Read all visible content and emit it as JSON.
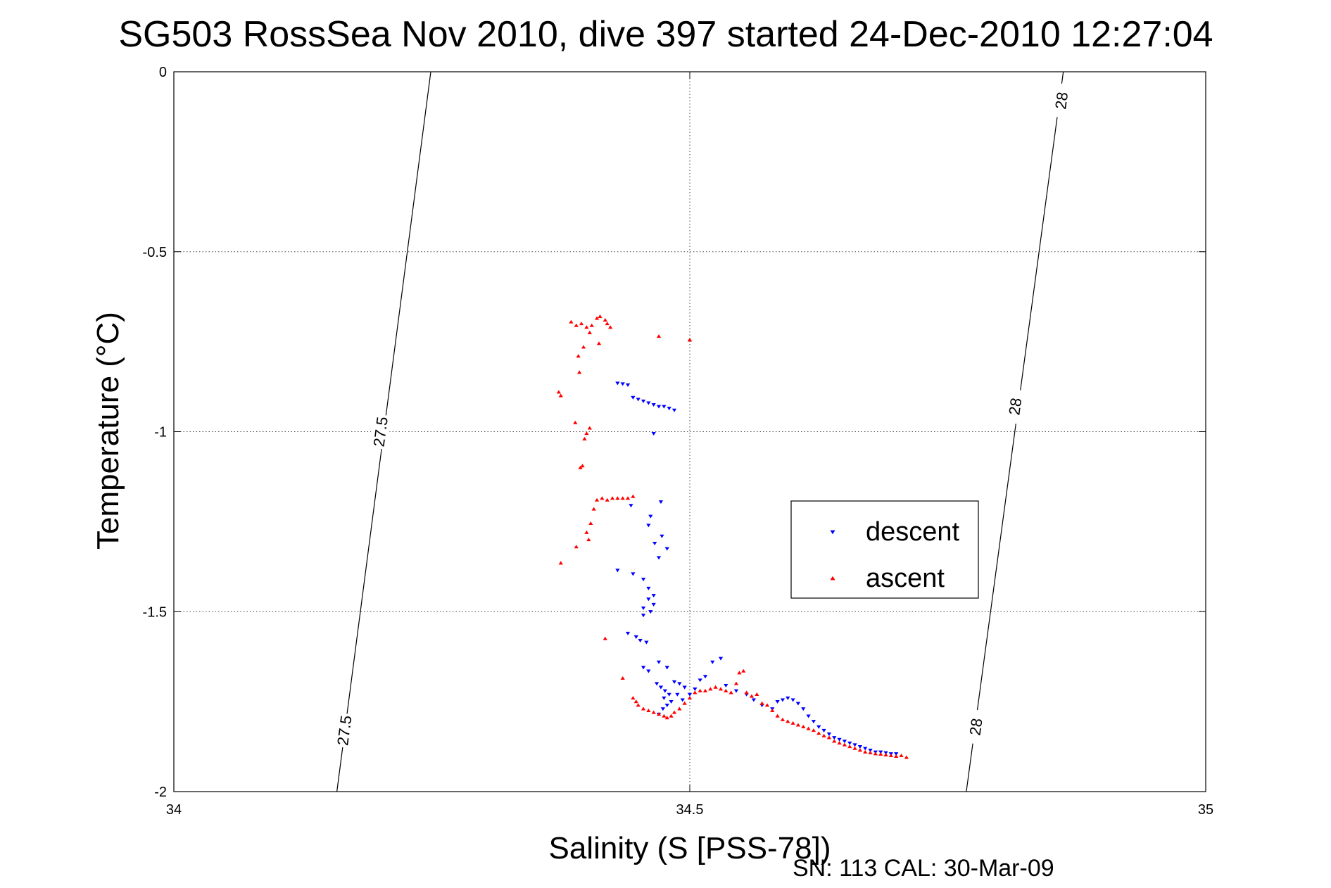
{
  "chart_data": {
    "type": "scatter",
    "title": "SG503 RossSea Nov 2010, dive 397 started 24-Dec-2010 12:27:04",
    "xlabel": "Salinity (S [PSS-78])",
    "ylabel": "Temperature (°C)",
    "xlim": [
      34,
      35
    ],
    "ylim": [
      -2,
      0
    ],
    "xticks": [
      "34",
      "34.5",
      "35"
    ],
    "yticks": [
      "0",
      "-0.5",
      "-1",
      "-1.5",
      "-2"
    ],
    "xtick_values": [
      34,
      34.5,
      35
    ],
    "ytick_values": [
      0,
      -0.5,
      -1,
      -1.5,
      -2
    ],
    "grid": true,
    "legend_position": "center-right",
    "footer": "SN: 113  CAL: 30-Mar-09",
    "contours": [
      {
        "label": "27.5",
        "points": [
          [
            34.158,
            -2.0
          ],
          [
            34.249,
            0.0
          ]
        ],
        "label_positions": [
          [
            34.2,
            -1.0
          ],
          [
            34.165,
            -1.83
          ]
        ]
      },
      {
        "label": "28",
        "points": [
          [
            34.768,
            -2.0
          ],
          [
            34.862,
            0.0
          ]
        ],
        "label_positions": [
          [
            34.86,
            -0.08
          ],
          [
            34.815,
            -0.93
          ],
          [
            34.777,
            -1.82
          ]
        ]
      }
    ],
    "series": [
      {
        "name": "descent",
        "marker": "triangle-down",
        "color": "#0000ff",
        "points": [
          [
            34.43,
            -0.865
          ],
          [
            34.435,
            -0.867
          ],
          [
            34.44,
            -0.87
          ],
          [
            34.445,
            -0.905
          ],
          [
            34.45,
            -0.91
          ],
          [
            34.455,
            -0.915
          ],
          [
            34.46,
            -0.92
          ],
          [
            34.465,
            -0.925
          ],
          [
            34.47,
            -0.93
          ],
          [
            34.475,
            -0.93
          ],
          [
            34.48,
            -0.935
          ],
          [
            34.485,
            -0.94
          ],
          [
            34.465,
            -1.005
          ],
          [
            34.472,
            -1.195
          ],
          [
            34.443,
            -1.205
          ],
          [
            34.462,
            -1.235
          ],
          [
            34.46,
            -1.26
          ],
          [
            34.473,
            -1.29
          ],
          [
            34.466,
            -1.31
          ],
          [
            34.478,
            -1.325
          ],
          [
            34.47,
            -1.35
          ],
          [
            34.43,
            -1.385
          ],
          [
            34.445,
            -1.395
          ],
          [
            34.455,
            -1.41
          ],
          [
            34.46,
            -1.435
          ],
          [
            34.465,
            -1.455
          ],
          [
            34.46,
            -1.465
          ],
          [
            34.465,
            -1.48
          ],
          [
            34.455,
            -1.49
          ],
          [
            34.462,
            -1.5
          ],
          [
            34.455,
            -1.51
          ],
          [
            34.44,
            -1.56
          ],
          [
            34.448,
            -1.57
          ],
          [
            34.452,
            -1.58
          ],
          [
            34.458,
            -1.585
          ],
          [
            34.47,
            -1.64
          ],
          [
            34.478,
            -1.655
          ],
          [
            34.455,
            -1.655
          ],
          [
            34.46,
            -1.665
          ],
          [
            34.468,
            -1.7
          ],
          [
            34.472,
            -1.71
          ],
          [
            34.476,
            -1.72
          ],
          [
            34.48,
            -1.73
          ],
          [
            34.475,
            -1.74
          ],
          [
            34.482,
            -1.75
          ],
          [
            34.478,
            -1.76
          ],
          [
            34.474,
            -1.77
          ],
          [
            34.47,
            -1.785
          ],
          [
            34.485,
            -1.695
          ],
          [
            34.49,
            -1.7
          ],
          [
            34.495,
            -1.71
          ],
          [
            34.488,
            -1.73
          ],
          [
            34.493,
            -1.745
          ],
          [
            34.5,
            -1.73
          ],
          [
            34.505,
            -1.715
          ],
          [
            34.51,
            -1.69
          ],
          [
            34.515,
            -1.68
          ],
          [
            34.522,
            -1.64
          ],
          [
            34.53,
            -1.63
          ],
          [
            34.535,
            -1.705
          ],
          [
            34.545,
            -1.72
          ],
          [
            34.555,
            -1.73
          ],
          [
            34.562,
            -1.745
          ],
          [
            34.57,
            -1.76
          ],
          [
            34.58,
            -1.77
          ],
          [
            34.585,
            -1.75
          ],
          [
            34.59,
            -1.745
          ],
          [
            34.595,
            -1.74
          ],
          [
            34.6,
            -1.745
          ],
          [
            34.605,
            -1.755
          ],
          [
            34.61,
            -1.77
          ],
          [
            34.615,
            -1.79
          ],
          [
            34.62,
            -1.805
          ],
          [
            34.625,
            -1.82
          ],
          [
            34.63,
            -1.83
          ],
          [
            34.635,
            -1.84
          ],
          [
            34.64,
            -1.85
          ],
          [
            34.645,
            -1.855
          ],
          [
            34.65,
            -1.86
          ],
          [
            34.655,
            -1.865
          ],
          [
            34.66,
            -1.87
          ],
          [
            34.665,
            -1.875
          ],
          [
            34.67,
            -1.88
          ],
          [
            34.675,
            -1.885
          ],
          [
            34.68,
            -1.89
          ],
          [
            34.685,
            -1.89
          ],
          [
            34.69,
            -1.892
          ],
          [
            34.695,
            -1.895
          ],
          [
            34.7,
            -1.895
          ]
        ]
      },
      {
        "name": "ascent",
        "marker": "triangle-up",
        "color": "#ff0000",
        "points": [
          [
            34.385,
            -0.695
          ],
          [
            34.39,
            -0.705
          ],
          [
            34.395,
            -0.7
          ],
          [
            34.4,
            -0.71
          ],
          [
            34.405,
            -0.705
          ],
          [
            34.41,
            -0.685
          ],
          [
            34.413,
            -0.68
          ],
          [
            34.418,
            -0.69
          ],
          [
            34.42,
            -0.7
          ],
          [
            34.423,
            -0.71
          ],
          [
            34.403,
            -0.725
          ],
          [
            34.412,
            -0.755
          ],
          [
            34.397,
            -0.765
          ],
          [
            34.392,
            -0.79
          ],
          [
            34.47,
            -0.735
          ],
          [
            34.5,
            -0.745
          ],
          [
            34.5,
            -0.745
          ],
          [
            34.393,
            -0.835
          ],
          [
            34.373,
            -0.89
          ],
          [
            34.375,
            -0.9
          ],
          [
            34.389,
            -0.975
          ],
          [
            34.403,
            -0.99
          ],
          [
            34.4,
            -1.005
          ],
          [
            34.398,
            -1.02
          ],
          [
            34.396,
            -1.095
          ],
          [
            34.394,
            -1.1
          ],
          [
            34.41,
            -1.19
          ],
          [
            34.415,
            -1.185
          ],
          [
            34.42,
            -1.19
          ],
          [
            34.425,
            -1.185
          ],
          [
            34.43,
            -1.185
          ],
          [
            34.435,
            -1.185
          ],
          [
            34.44,
            -1.185
          ],
          [
            34.445,
            -1.18
          ],
          [
            34.407,
            -1.215
          ],
          [
            34.404,
            -1.255
          ],
          [
            34.4,
            -1.28
          ],
          [
            34.39,
            -1.32
          ],
          [
            34.402,
            -1.3
          ],
          [
            34.375,
            -1.365
          ],
          [
            34.418,
            -1.575
          ],
          [
            34.435,
            -1.685
          ],
          [
            34.445,
            -1.74
          ],
          [
            34.448,
            -1.75
          ],
          [
            34.45,
            -1.76
          ],
          [
            34.455,
            -1.77
          ],
          [
            34.46,
            -1.775
          ],
          [
            34.465,
            -1.78
          ],
          [
            34.47,
            -1.785
          ],
          [
            34.475,
            -1.79
          ],
          [
            34.478,
            -1.795
          ],
          [
            34.482,
            -1.79
          ],
          [
            34.485,
            -1.78
          ],
          [
            34.49,
            -1.77
          ],
          [
            34.495,
            -1.755
          ],
          [
            34.5,
            -1.74
          ],
          [
            34.505,
            -1.725
          ],
          [
            34.51,
            -1.72
          ],
          [
            34.515,
            -1.72
          ],
          [
            34.52,
            -1.715
          ],
          [
            34.525,
            -1.71
          ],
          [
            34.53,
            -1.715
          ],
          [
            34.535,
            -1.72
          ],
          [
            34.54,
            -1.725
          ],
          [
            34.545,
            -1.7
          ],
          [
            34.548,
            -1.67
          ],
          [
            34.552,
            -1.665
          ],
          [
            34.555,
            -1.725
          ],
          [
            34.56,
            -1.735
          ],
          [
            34.565,
            -1.73
          ],
          [
            34.57,
            -1.755
          ],
          [
            34.575,
            -1.76
          ],
          [
            34.58,
            -1.775
          ],
          [
            34.585,
            -1.79
          ],
          [
            34.59,
            -1.8
          ],
          [
            34.595,
            -1.805
          ],
          [
            34.6,
            -1.81
          ],
          [
            34.605,
            -1.815
          ],
          [
            34.61,
            -1.82
          ],
          [
            34.615,
            -1.825
          ],
          [
            34.62,
            -1.83
          ],
          [
            34.625,
            -1.838
          ],
          [
            34.63,
            -1.845
          ],
          [
            34.635,
            -1.85
          ],
          [
            34.64,
            -1.86
          ],
          [
            34.645,
            -1.865
          ],
          [
            34.65,
            -1.87
          ],
          [
            34.655,
            -1.875
          ],
          [
            34.66,
            -1.88
          ],
          [
            34.665,
            -1.885
          ],
          [
            34.67,
            -1.89
          ],
          [
            34.675,
            -1.892
          ],
          [
            34.68,
            -1.895
          ],
          [
            34.685,
            -1.896
          ],
          [
            34.69,
            -1.898
          ],
          [
            34.695,
            -1.9
          ],
          [
            34.7,
            -1.902
          ],
          [
            34.705,
            -1.9
          ],
          [
            34.71,
            -1.905
          ]
        ]
      }
    ]
  }
}
